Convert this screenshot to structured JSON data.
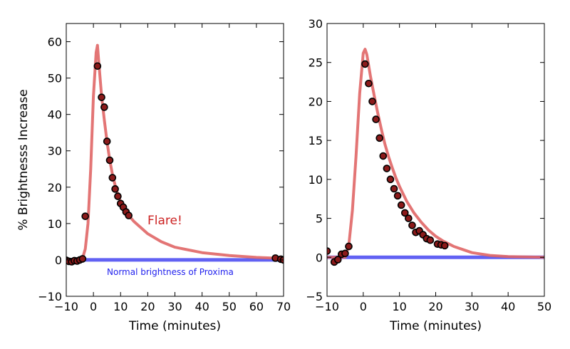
{
  "chart_data": [
    {
      "type": "scatter",
      "xlabel": "Time (minutes)",
      "ylabel": "% Brightnesss Increase",
      "xlim": [
        -10,
        70
      ],
      "ylim": [
        -10,
        65
      ],
      "xticks": [
        -10,
        0,
        10,
        20,
        30,
        40,
        50,
        60,
        70
      ],
      "xtick_labels": [
        "−10",
        "0",
        "10",
        "20",
        "30",
        "40",
        "50",
        "60",
        "70"
      ],
      "yticks": [
        -10,
        0,
        10,
        20,
        30,
        40,
        50,
        60
      ],
      "ytick_labels": [
        "−10",
        "0",
        "10",
        "20",
        "30",
        "40",
        "50",
        "60"
      ],
      "grid": false,
      "baseline_value": 0,
      "baseline_color": "#3a3af0",
      "curve_color": "#e06666",
      "point_color": "#8b1a1a",
      "model_curve": {
        "x": [
          -10,
          -5,
          -4,
          -3,
          -2,
          -1,
          0,
          1,
          1.5,
          2,
          3,
          4,
          5,
          6,
          7,
          8,
          9,
          10,
          11,
          12,
          13,
          15,
          20,
          25,
          30,
          40,
          50,
          60,
          70
        ],
        "y": [
          0,
          0,
          0.5,
          3,
          10,
          25,
          45,
          57,
          59,
          54,
          45,
          38.5,
          32.5,
          27.5,
          23.5,
          20.5,
          18,
          16,
          14.5,
          13.2,
          12.2,
          10.5,
          7.2,
          5,
          3.5,
          2,
          1.2,
          0.7,
          0.4
        ]
      },
      "points": {
        "x": [
          -10,
          -9,
          -8,
          -7,
          -6,
          -5,
          -4,
          -3,
          1.5,
          3,
          4,
          5,
          6,
          7,
          8,
          9,
          10,
          11,
          12,
          13,
          67,
          69,
          70
        ],
        "y": [
          -0.1,
          -0.4,
          -0.5,
          -0.2,
          -0.3,
          0,
          0.3,
          12,
          53.3,
          44.7,
          42,
          32.6,
          27.4,
          22.6,
          19.5,
          17.5,
          15.5,
          14.5,
          13.2,
          12.2,
          0.5,
          0.2,
          0
        ]
      },
      "annotations": [
        {
          "text": "Flare!",
          "x": 20,
          "y": 10,
          "color": "#cc2222"
        },
        {
          "text": "Normal brightness of Proxima",
          "x": 4,
          "y": -3.8,
          "color": "#2222ee"
        }
      ]
    },
    {
      "type": "scatter",
      "xlabel": "Time (minutes)",
      "ylabel": "",
      "xlim": [
        -10,
        50
      ],
      "ylim": [
        -5,
        30
      ],
      "xticks": [
        -10,
        0,
        10,
        20,
        30,
        40,
        50
      ],
      "xtick_labels": [
        "−10",
        "0",
        "10",
        "20",
        "30",
        "40",
        "50"
      ],
      "yticks": [
        -5,
        0,
        5,
        10,
        15,
        20,
        25,
        30
      ],
      "ytick_labels": [
        "−5",
        "0",
        "5",
        "10",
        "15",
        "20",
        "25",
        "30"
      ],
      "grid": false,
      "baseline_value": 0,
      "baseline_color": "#3a3af0",
      "curve_color": "#e06666",
      "point_color": "#8b1a1a",
      "model_curve": {
        "x": [
          -10,
          -5,
          -4,
          -3,
          -2,
          -1,
          0,
          0.5,
          1,
          2,
          3,
          4,
          5,
          6,
          7,
          8,
          9,
          10,
          12,
          14,
          16,
          18,
          20,
          22,
          25,
          30,
          35,
          40,
          45,
          50
        ],
        "y": [
          0,
          0,
          1.5,
          6,
          13,
          21,
          26.2,
          26.7,
          26,
          23.2,
          20.8,
          18.5,
          16.4,
          14.5,
          12.9,
          11.5,
          10.2,
          9.1,
          7.2,
          5.7,
          4.5,
          3.5,
          2.7,
          2.1,
          1.4,
          0.6,
          0.25,
          0.1,
          0.04,
          0
        ]
      },
      "points": {
        "x": [
          -10,
          -8,
          -7,
          -6,
          -5,
          -4,
          0.5,
          1.5,
          2.5,
          3.5,
          4.5,
          5.5,
          6.5,
          7.5,
          8.5,
          9.5,
          10.5,
          11.5,
          12.5,
          13.5,
          14.5,
          15.5,
          16.5,
          17.5,
          18.5,
          20.5,
          21.5,
          22.5
        ],
        "y": [
          0.8,
          -0.6,
          -0.3,
          0.4,
          0.5,
          1.4,
          24.8,
          22.3,
          20,
          17.7,
          15.3,
          13,
          11.4,
          10,
          8.8,
          7.9,
          6.7,
          5.7,
          5,
          4.1,
          3.2,
          3.4,
          2.9,
          2.4,
          2.2,
          1.7,
          1.6,
          1.5
        ]
      },
      "annotations": []
    }
  ]
}
